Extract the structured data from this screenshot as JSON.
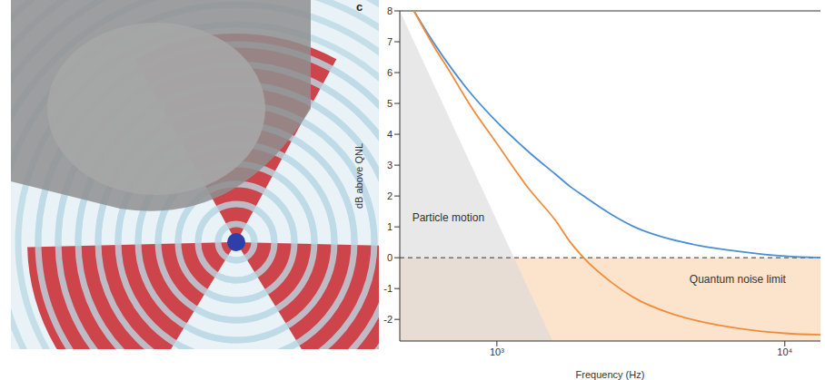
{
  "chart_data": {
    "type": "line",
    "panel_label": "c",
    "x_label": "Frequency (Hz)",
    "y_label": "dB above QNL",
    "log": "x",
    "xlim": [
      460,
      13300
    ],
    "xticks": [
      {
        "value": 1000,
        "label": "10³"
      },
      {
        "value": 10000,
        "label": "10⁴"
      }
    ],
    "ylim": [
      -2.7,
      8
    ],
    "yticks": [
      -2,
      -1,
      0,
      1,
      2,
      3,
      4,
      5,
      6,
      7,
      8
    ],
    "x": [
      515,
      600,
      700,
      800,
      1000,
      1300,
      1600,
      1800,
      2000,
      2500,
      3000,
      4000,
      5000,
      7000,
      10000,
      13300
    ],
    "series": [
      {
        "color": "#4a8fd4",
        "values": [
          8,
          7.0,
          6.1,
          5.4,
          4.4,
          3.4,
          2.7,
          2.3,
          2.0,
          1.4,
          1.0,
          0.6,
          0.4,
          0.2,
          0.05,
          0.0
        ]
      },
      {
        "color": "#f28c3c",
        "values": [
          8,
          6.9,
          5.9,
          5.0,
          3.7,
          2.2,
          1.2,
          0.5,
          0.0,
          -0.8,
          -1.3,
          -1.8,
          -2.05,
          -2.3,
          -2.45,
          -2.5
        ]
      }
    ],
    "regions": [
      {
        "label": "Particle motion",
        "color": "#d9d9d9",
        "x": [
          460,
          1560
        ],
        "y": [
          8,
          -2.7
        ]
      },
      {
        "label": "Quantum noise limit",
        "color": "#fbdcbf",
        "y": [
          0,
          -2.7
        ]
      }
    ],
    "reference_line": {
      "y": 0,
      "line_style": "dashed"
    }
  }
}
